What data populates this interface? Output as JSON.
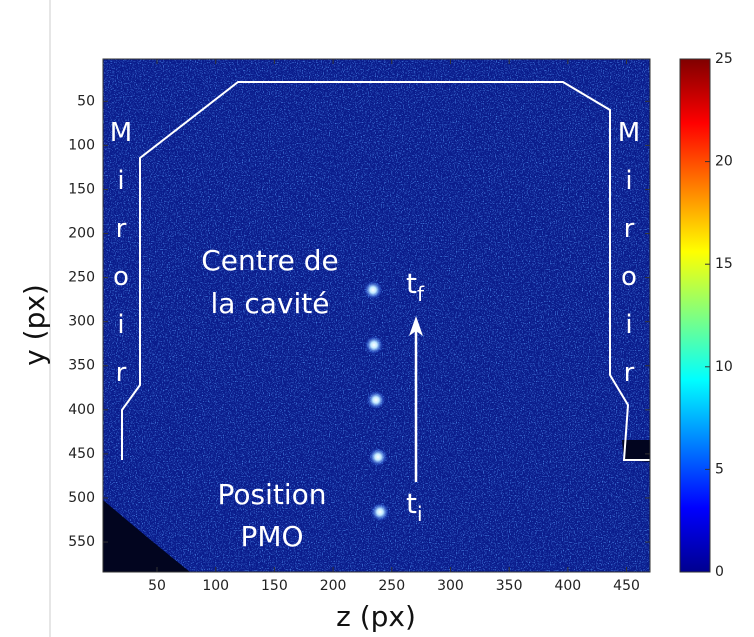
{
  "chart_data": {
    "type": "heatmap",
    "xlabel": "z (px)",
    "ylabel": "y (px)",
    "xlim": [
      4,
      470
    ],
    "xticks": [
      50,
      100,
      150,
      200,
      250,
      300,
      350,
      400,
      450
    ],
    "ylim": [
      2,
      584
    ],
    "yticks": [
      50,
      100,
      150,
      200,
      250,
      300,
      350,
      400,
      450,
      500,
      550
    ],
    "y_reversed": true,
    "colorbar": {
      "lim": [
        0,
        25
      ],
      "ticks": [
        0,
        5,
        10,
        15,
        20,
        25
      ],
      "colormap": "jet"
    },
    "annotations": {
      "mirror_left": "Miroir",
      "mirror_right": "Miroir",
      "centre": [
        "Centre de",
        "la cavité"
      ],
      "pmo": [
        "Position",
        "PMO"
      ],
      "t_final": {
        "text": "t",
        "subscript": "f"
      },
      "t_initial": {
        "text": "t",
        "subscript": "i"
      }
    }
  }
}
